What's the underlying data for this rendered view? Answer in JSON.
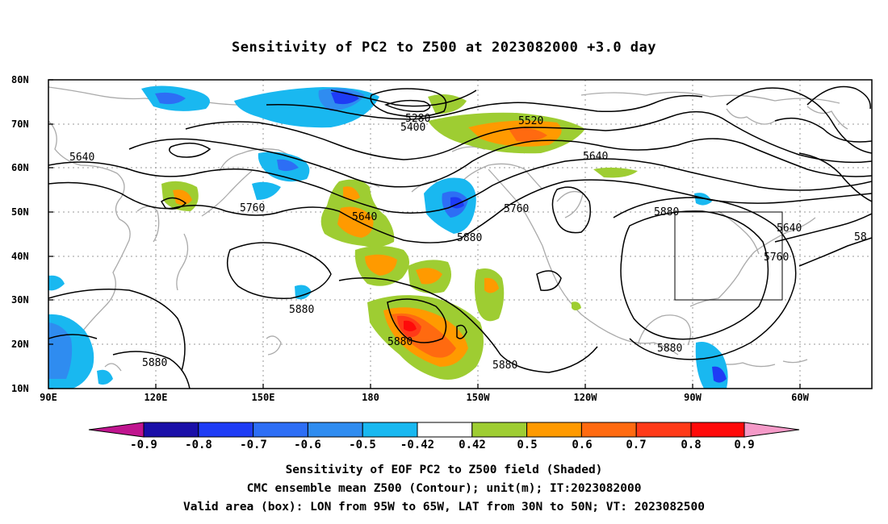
{
  "title": "Sensitivity of PC2 to Z500 at 2023082000 +3.0 day",
  "lat_labels": [
    "80N",
    "70N",
    "60N",
    "50N",
    "40N",
    "30N",
    "20N",
    "10N"
  ],
  "lon_labels": [
    "90E",
    "120E",
    "150E",
    "180",
    "150W",
    "120W",
    "90W",
    "60W"
  ],
  "contour_labels": [
    "5280",
    "5400",
    "5520",
    "5640",
    "5640",
    "5640",
    "5760",
    "5760",
    "5640",
    "5760",
    "5880",
    "5880",
    "5880",
    "5880",
    "5880",
    "5880",
    "5880",
    "58"
  ],
  "colorbar": {
    "labels": [
      "-0.9",
      "-0.8",
      "-0.7",
      "-0.6",
      "-0.5",
      "-0.42",
      "0.42",
      "0.5",
      "0.6",
      "0.7",
      "0.8",
      "0.9"
    ],
    "colors": [
      "#c0158f",
      "#1a0fa8",
      "#1e3cf5",
      "#2d6ef5",
      "#2f8cf0",
      "#19b8f0",
      "#ffffff",
      "#9ecd32",
      "#ff9a00",
      "#ff6a10",
      "#ff3a18",
      "#ff0a0a",
      "#f59ac8"
    ]
  },
  "valid_box": {
    "lon": [
      "95W",
      "65W"
    ],
    "lat": [
      "30N",
      "50N"
    ]
  },
  "captions": [
    "Sensitivity of EOF PC2 to Z500 field (Shaded)",
    "CMC ensemble mean Z500 (Contour); unit(m); IT:2023082000",
    "Valid area (box): LON from 95W to 65W, LAT from 30N to 50N; VT: 2023082500"
  ]
}
